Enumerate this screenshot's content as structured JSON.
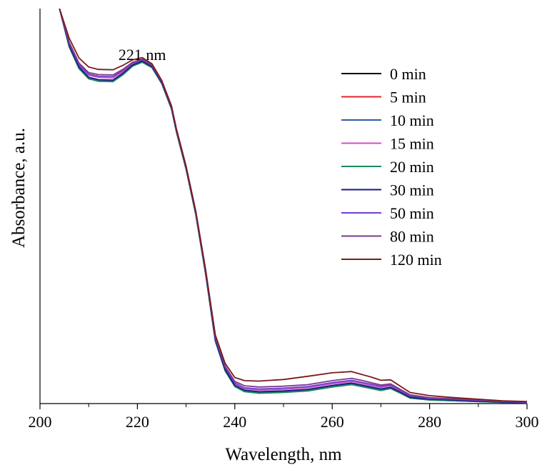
{
  "chart_data": {
    "type": "line",
    "xlabel": "Wavelength, nm",
    "ylabel": "Absorbance, a.u.",
    "xlim": [
      200,
      300
    ],
    "ylim": [
      0,
      1.0
    ],
    "x_ticks": [
      200,
      220,
      240,
      260,
      280,
      300
    ],
    "y_ticks_labeled": false,
    "grid": false,
    "legend_position": "top-right",
    "annotations": [
      {
        "text": "221 nm",
        "x": 221
      }
    ],
    "x": [
      204,
      206,
      208,
      210,
      212,
      215,
      217,
      219,
      221,
      223,
      225,
      227,
      228,
      230,
      232,
      234,
      236,
      238,
      240,
      242,
      245,
      250,
      255,
      260,
      264,
      266,
      268,
      270,
      272,
      274,
      276,
      280,
      285,
      290,
      295,
      300
    ],
    "series": [
      {
        "name": "0 min",
        "color": "#000000",
        "values": [
          1.0,
          0.905,
          0.85,
          0.824,
          0.818,
          0.817,
          0.834,
          0.856,
          0.866,
          0.852,
          0.812,
          0.748,
          0.69,
          0.595,
          0.48,
          0.33,
          0.16,
          0.085,
          0.045,
          0.032,
          0.028,
          0.03,
          0.034,
          0.044,
          0.05,
          0.045,
          0.04,
          0.035,
          0.04,
          0.028,
          0.015,
          0.01,
          0.008,
          0.006,
          0.004,
          0.002
        ]
      },
      {
        "name": "5 min",
        "color": "#e8202a",
        "values": [
          1.0,
          0.906,
          0.851,
          0.825,
          0.819,
          0.818,
          0.835,
          0.857,
          0.867,
          0.853,
          0.813,
          0.749,
          0.691,
          0.596,
          0.481,
          0.331,
          0.161,
          0.086,
          0.046,
          0.033,
          0.029,
          0.031,
          0.035,
          0.045,
          0.051,
          0.046,
          0.041,
          0.036,
          0.041,
          0.029,
          0.016,
          0.011,
          0.009,
          0.006,
          0.004,
          0.002
        ]
      },
      {
        "name": "10 min",
        "color": "#2e5fa8",
        "values": [
          1.0,
          0.904,
          0.849,
          0.823,
          0.817,
          0.816,
          0.833,
          0.855,
          0.865,
          0.851,
          0.811,
          0.747,
          0.689,
          0.594,
          0.479,
          0.329,
          0.159,
          0.084,
          0.044,
          0.031,
          0.027,
          0.029,
          0.033,
          0.043,
          0.049,
          0.044,
          0.039,
          0.034,
          0.039,
          0.027,
          0.014,
          0.009,
          0.007,
          0.005,
          0.003,
          0.002
        ]
      },
      {
        "name": "15 min",
        "color": "#d04fc8",
        "values": [
          1.0,
          0.91,
          0.856,
          0.831,
          0.826,
          0.824,
          0.84,
          0.86,
          0.869,
          0.855,
          0.814,
          0.75,
          0.692,
          0.597,
          0.482,
          0.333,
          0.164,
          0.09,
          0.05,
          0.038,
          0.034,
          0.036,
          0.04,
          0.05,
          0.056,
          0.051,
          0.046,
          0.041,
          0.045,
          0.032,
          0.018,
          0.012,
          0.01,
          0.007,
          0.005,
          0.003
        ]
      },
      {
        "name": "20 min",
        "color": "#1a8a5a",
        "values": [
          1.0,
          0.903,
          0.848,
          0.822,
          0.816,
          0.815,
          0.832,
          0.854,
          0.864,
          0.85,
          0.81,
          0.746,
          0.688,
          0.593,
          0.478,
          0.328,
          0.158,
          0.083,
          0.043,
          0.03,
          0.026,
          0.028,
          0.032,
          0.042,
          0.048,
          0.043,
          0.038,
          0.033,
          0.038,
          0.026,
          0.014,
          0.009,
          0.007,
          0.005,
          0.003,
          0.002
        ]
      },
      {
        "name": "30 min",
        "color": "#1a1a80",
        "values": [
          1.0,
          0.906,
          0.852,
          0.826,
          0.82,
          0.819,
          0.836,
          0.857,
          0.867,
          0.853,
          0.812,
          0.748,
          0.69,
          0.595,
          0.48,
          0.331,
          0.161,
          0.086,
          0.046,
          0.034,
          0.03,
          0.032,
          0.036,
          0.046,
          0.052,
          0.047,
          0.042,
          0.037,
          0.041,
          0.029,
          0.016,
          0.011,
          0.009,
          0.006,
          0.004,
          0.002
        ]
      },
      {
        "name": "50 min",
        "color": "#7040d0",
        "values": [
          1.0,
          0.912,
          0.858,
          0.834,
          0.829,
          0.828,
          0.843,
          0.862,
          0.87,
          0.856,
          0.815,
          0.751,
          0.693,
          0.598,
          0.483,
          0.334,
          0.166,
          0.092,
          0.052,
          0.04,
          0.037,
          0.039,
          0.043,
          0.053,
          0.059,
          0.054,
          0.049,
          0.044,
          0.047,
          0.034,
          0.02,
          0.013,
          0.011,
          0.008,
          0.005,
          0.003
        ]
      },
      {
        "name": "80 min",
        "color": "#7a3a8a",
        "values": [
          1.0,
          0.915,
          0.862,
          0.838,
          0.833,
          0.832,
          0.846,
          0.864,
          0.872,
          0.857,
          0.816,
          0.752,
          0.694,
          0.599,
          0.484,
          0.336,
          0.168,
          0.095,
          0.056,
          0.045,
          0.042,
          0.044,
          0.048,
          0.058,
          0.064,
          0.059,
          0.053,
          0.047,
          0.05,
          0.036,
          0.022,
          0.015,
          0.012,
          0.009,
          0.006,
          0.004
        ]
      },
      {
        "name": "120 min",
        "color": "#7a1a1a",
        "values": [
          1.0,
          0.925,
          0.875,
          0.852,
          0.846,
          0.845,
          0.856,
          0.87,
          0.876,
          0.86,
          0.818,
          0.754,
          0.696,
          0.601,
          0.487,
          0.34,
          0.174,
          0.102,
          0.066,
          0.058,
          0.057,
          0.061,
          0.069,
          0.078,
          0.081,
          0.074,
          0.067,
          0.059,
          0.06,
          0.044,
          0.028,
          0.02,
          0.015,
          0.011,
          0.007,
          0.005
        ]
      }
    ]
  }
}
